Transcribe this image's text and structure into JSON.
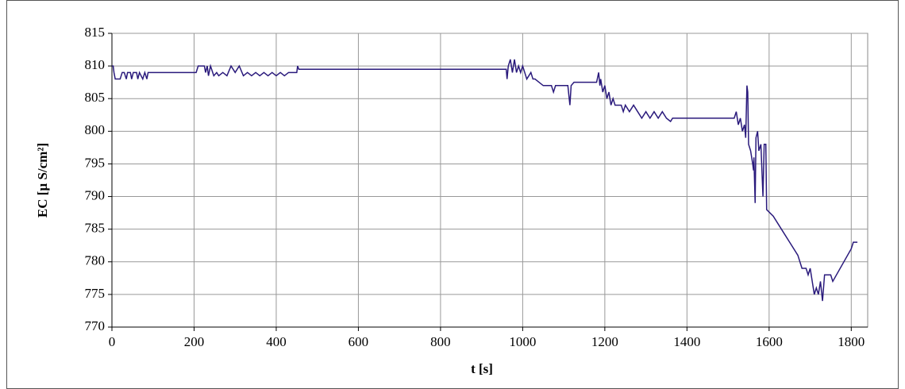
{
  "chart_data": {
    "type": "line",
    "x_label": "t [s]",
    "y_label": "EC [µ S/cm²]",
    "color": "#2a1a7c",
    "x": [
      0,
      3,
      5,
      8,
      20,
      25,
      30,
      35,
      38,
      45,
      48,
      52,
      60,
      63,
      67,
      75,
      80,
      85,
      88,
      200,
      205,
      210,
      225,
      228,
      232,
      235,
      240,
      248,
      255,
      260,
      270,
      280,
      290,
      300,
      310,
      320,
      330,
      340,
      350,
      360,
      370,
      380,
      390,
      400,
      410,
      420,
      430,
      450,
      452,
      455,
      960,
      962,
      965,
      970,
      975,
      980,
      985,
      990,
      995,
      1000,
      1005,
      1010,
      1020,
      1025,
      1030,
      1040,
      1050,
      1070,
      1075,
      1080,
      1110,
      1115,
      1118,
      1125,
      1180,
      1185,
      1188,
      1190,
      1195,
      1200,
      1205,
      1210,
      1215,
      1220,
      1225,
      1240,
      1245,
      1250,
      1260,
      1270,
      1280,
      1290,
      1300,
      1310,
      1320,
      1330,
      1340,
      1350,
      1360,
      1365,
      1370,
      1515,
      1520,
      1525,
      1530,
      1535,
      1540,
      1543,
      1546,
      1548,
      1550,
      1555,
      1560,
      1562,
      1563,
      1566,
      1568,
      1572,
      1575,
      1580,
      1585,
      1588,
      1592,
      1594,
      1610,
      1630,
      1650,
      1670,
      1680,
      1690,
      1695,
      1700,
      1705,
      1710,
      1715,
      1720,
      1725,
      1730,
      1735,
      1740,
      1750,
      1755,
      1800,
      1805,
      1815
    ],
    "values": [
      810,
      810,
      809,
      808,
      808,
      809,
      809,
      808,
      809,
      809,
      808,
      809,
      809,
      808,
      809,
      808,
      809,
      808,
      809,
      809,
      809,
      810,
      810,
      809,
      810,
      808.5,
      810,
      808.5,
      809,
      808.5,
      809,
      808.5,
      810,
      809,
      810,
      808.5,
      809,
      808.5,
      809,
      808.5,
      809,
      808.5,
      809,
      808.5,
      809,
      808.5,
      809,
      809,
      810,
      809.5,
      809.5,
      808,
      810,
      811,
      809,
      811,
      809,
      810,
      809,
      810,
      809,
      808,
      809,
      808,
      808,
      807.5,
      807,
      807,
      806,
      807,
      807,
      804,
      807,
      807.5,
      807.5,
      809,
      807,
      808,
      806,
      807,
      805,
      806,
      804,
      805,
      804,
      804,
      803,
      804,
      803,
      804,
      803,
      802,
      803,
      802,
      803,
      802,
      803,
      802,
      801.5,
      802,
      802,
      802,
      803,
      801,
      802,
      800,
      801,
      799,
      807,
      806,
      798,
      797,
      795,
      794,
      796,
      789,
      799,
      800,
      797,
      798,
      790,
      798,
      798,
      788,
      787,
      785,
      783,
      781,
      779,
      779,
      778,
      779,
      777,
      775,
      776,
      775,
      777,
      774,
      778,
      778,
      778,
      777,
      782,
      783,
      783
    ],
    "xlim": [
      0,
      1840
    ],
    "xticks": [
      0,
      200,
      400,
      600,
      800,
      1000,
      1200,
      1400,
      1600,
      1800
    ],
    "ylim": [
      770,
      815
    ],
    "yticks": [
      770,
      775,
      780,
      785,
      790,
      795,
      800,
      805,
      810,
      815
    ],
    "grid": true
  }
}
